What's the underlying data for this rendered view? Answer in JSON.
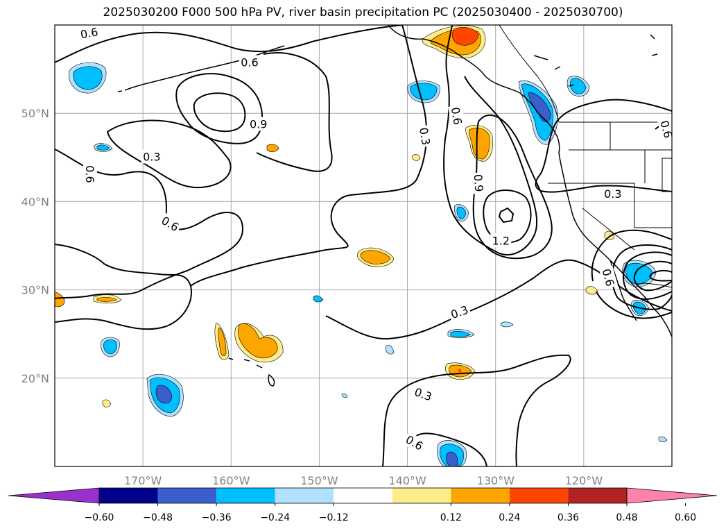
{
  "title": "2025030200 F000 500 hPa PV, river basin precipitation PC (2025030400 - 2025030700)",
  "map": {
    "lon_range": [
      -180,
      -110
    ],
    "lat_range": [
      10,
      60
    ],
    "lon_ticks": [
      {
        "value": -170,
        "label": "170°W"
      },
      {
        "value": -160,
        "label": "160°W"
      },
      {
        "value": -150,
        "label": "150°W"
      },
      {
        "value": -140,
        "label": "140°W"
      },
      {
        "value": -130,
        "label": "130°W"
      },
      {
        "value": -120,
        "label": "120°W"
      }
    ],
    "lat_ticks": [
      {
        "value": 20,
        "label": "20°N"
      },
      {
        "value": 30,
        "label": "30°N"
      },
      {
        "value": 40,
        "label": "40°N"
      },
      {
        "value": 50,
        "label": "50°N"
      }
    ],
    "gridlines": true,
    "contour_labels": [
      {
        "text": "0.6",
        "lon": -176.1,
        "lat": 59.1,
        "rot": -10
      },
      {
        "text": "0.6",
        "lon": -157.9,
        "lat": 55.8,
        "rot": 0
      },
      {
        "text": "0.9",
        "lon": -156.9,
        "lat": 48.8,
        "rot": 0
      },
      {
        "text": "0.3",
        "lon": -169.0,
        "lat": 45.1,
        "rot": 0
      },
      {
        "text": "0.6",
        "lon": -176.0,
        "lat": 43.1,
        "rot": 90
      },
      {
        "text": "0.6",
        "lon": -166.9,
        "lat": 37.5,
        "rot": 30
      },
      {
        "text": "0.3",
        "lon": -138.0,
        "lat": 47.4,
        "rot": 80
      },
      {
        "text": "0.6",
        "lon": -134.4,
        "lat": 49.7,
        "rot": 80
      },
      {
        "text": "0.9",
        "lon": -131.9,
        "lat": 42.1,
        "rot": 85
      },
      {
        "text": "1.2",
        "lon": -129.4,
        "lat": 35.6,
        "rot": 0
      },
      {
        "text": "0.3",
        "lon": -116.7,
        "lat": 40.9,
        "rot": 0
      },
      {
        "text": "0.6",
        "lon": -110.6,
        "lat": 48.2,
        "rot": 75
      },
      {
        "text": "0.6",
        "lon": -117.2,
        "lat": 31.4,
        "rot": 75
      },
      {
        "text": "0.3",
        "lon": -134.1,
        "lat": 27.5,
        "rot": -20
      },
      {
        "text": "0.3",
        "lon": -138.2,
        "lat": 18.2,
        "rot": 20
      },
      {
        "text": "0.6",
        "lon": -139.2,
        "lat": 12.7,
        "rot": 30
      }
    ]
  },
  "colorbar": {
    "colors": [
      "#9932CC",
      "#00008B",
      "#3A5FCD",
      "#00BFFF",
      "#B0E2FF",
      "#FFFFFF",
      "#FFEC8B",
      "#FFA500",
      "#FF4500",
      "#B22222",
      "#FF82AB"
    ],
    "tick_labels": [
      "−0.60",
      "−0.48",
      "−0.36",
      "−0.24",
      "−0.12",
      "0.12",
      "0.24",
      "0.36",
      "0.48",
      "0.60"
    ]
  }
}
